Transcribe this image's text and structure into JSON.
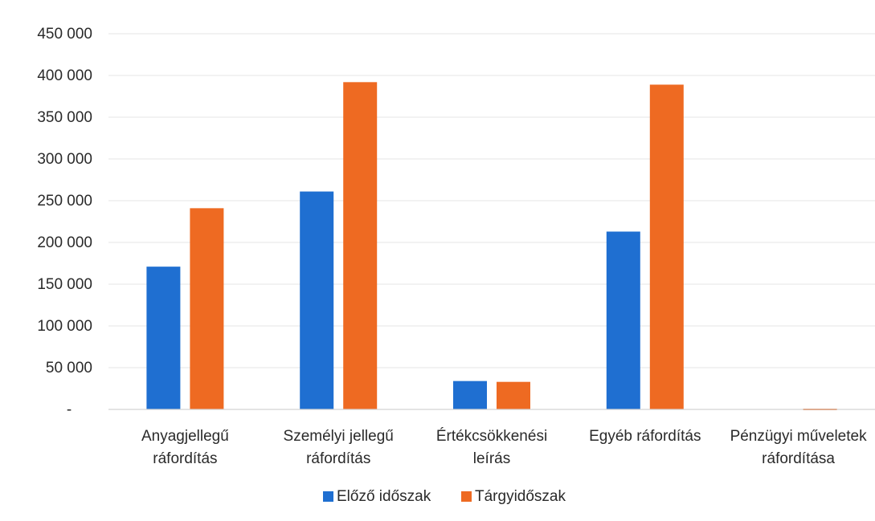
{
  "chart_data": {
    "type": "bar",
    "title": "",
    "xlabel": "",
    "ylabel": "",
    "ylim": [
      0,
      450000
    ],
    "yticks": [
      0,
      50000,
      100000,
      150000,
      200000,
      250000,
      300000,
      350000,
      400000,
      450000
    ],
    "ytick_labels": [
      "-",
      "50 000",
      "100 000",
      "150 000",
      "200 000",
      "250 000",
      "300 000",
      "350 000",
      "400 000",
      "450 000"
    ],
    "grid": true,
    "legend_position": "bottom",
    "categories": [
      [
        "Anyagjellegű",
        "ráfordítás"
      ],
      [
        "Személyi jellegű",
        "ráfordítás"
      ],
      [
        "Értékcsökkenési",
        "leírás"
      ],
      [
        "Egyéb ráfordítás"
      ],
      [
        "Pénzügyi műveletek",
        "ráfordítása"
      ]
    ],
    "series": [
      {
        "name": "Előző időszak",
        "color": "#1f6fd1",
        "values": [
          171000,
          261000,
          34000,
          213000,
          0
        ]
      },
      {
        "name": "Tárgyidőszak",
        "color": "#ee6a22",
        "values": [
          241000,
          392000,
          33000,
          389000,
          1500
        ]
      }
    ]
  }
}
